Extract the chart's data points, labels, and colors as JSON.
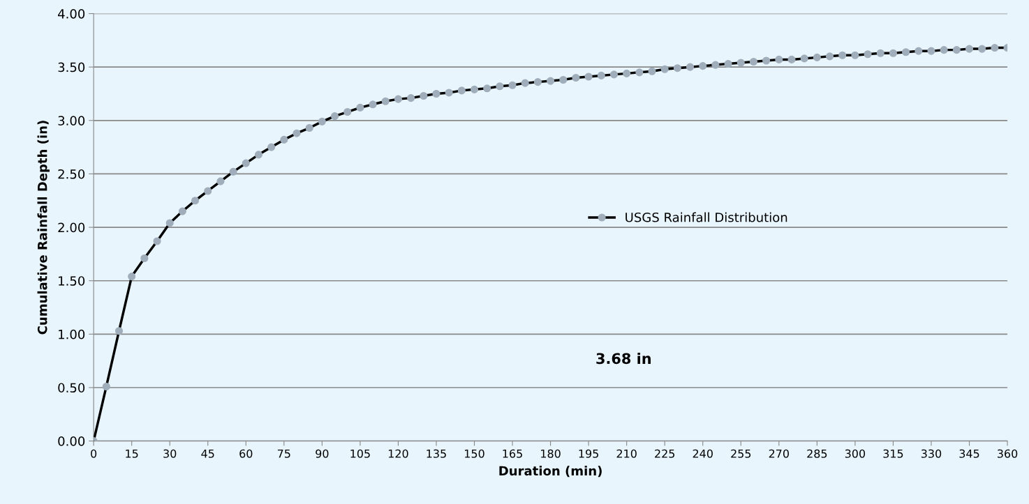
{
  "chart_data": {
    "type": "line",
    "xlabel": "Duration (min)",
    "ylabel": "Cumulative Rainfall Depth (in)",
    "x": [
      0,
      5,
      10,
      15,
      20,
      25,
      30,
      35,
      40,
      45,
      50,
      55,
      60,
      65,
      70,
      75,
      80,
      85,
      90,
      95,
      100,
      105,
      110,
      115,
      120,
      125,
      130,
      135,
      140,
      145,
      150,
      155,
      160,
      165,
      170,
      175,
      180,
      185,
      190,
      195,
      200,
      205,
      210,
      215,
      220,
      225,
      230,
      235,
      240,
      245,
      250,
      255,
      260,
      265,
      270,
      275,
      280,
      285,
      290,
      295,
      300,
      305,
      310,
      315,
      320,
      325,
      330,
      335,
      340,
      345,
      350,
      355,
      360
    ],
    "series": [
      {
        "name": "USGS Rainfall Distribution",
        "color": "#000000",
        "values": [
          0,
          0.51,
          1.03,
          1.54,
          1.71,
          1.87,
          2.04,
          2.15,
          2.25,
          2.34,
          2.43,
          2.52,
          2.6,
          2.68,
          2.75,
          2.82,
          2.88,
          2.93,
          2.99,
          3.04,
          3.08,
          3.12,
          3.15,
          3.18,
          3.2,
          3.21,
          3.23,
          3.25,
          3.26,
          3.28,
          3.29,
          3.3,
          3.32,
          3.33,
          3.35,
          3.36,
          3.37,
          3.38,
          3.4,
          3.41,
          3.42,
          3.43,
          3.44,
          3.45,
          3.46,
          3.48,
          3.49,
          3.5,
          3.51,
          3.52,
          3.53,
          3.54,
          3.55,
          3.56,
          3.57,
          3.57,
          3.58,
          3.59,
          3.6,
          3.61,
          3.61,
          3.62,
          3.63,
          3.63,
          3.64,
          3.65,
          3.65,
          3.66,
          3.66,
          3.67,
          3.67,
          3.68,
          3.68
        ]
      }
    ],
    "xlim": [
      0,
      360
    ],
    "xticks": [
      0,
      15,
      30,
      45,
      60,
      75,
      90,
      105,
      120,
      135,
      150,
      165,
      180,
      195,
      210,
      225,
      240,
      255,
      270,
      285,
      300,
      315,
      330,
      345,
      360
    ],
    "ylim": [
      0,
      4
    ],
    "yticks": [
      {
        "value": 0,
        "label": "0.00"
      },
      {
        "value": 0.5,
        "label": "0.50"
      },
      {
        "value": 1,
        "label": "1.00"
      },
      {
        "value": 1.5,
        "label": "1.50"
      },
      {
        "value": 2,
        "label": "2.00"
      },
      {
        "value": 2.5,
        "label": "2.50"
      },
      {
        "value": 3,
        "label": "3.00"
      },
      {
        "value": 3.5,
        "label": "3.50"
      },
      {
        "value": 4,
        "label": "4.00"
      }
    ],
    "grid": "y",
    "legend": "right",
    "marker": "circle",
    "line_style": "solid",
    "annotations": [
      "3.68 in"
    ]
  }
}
